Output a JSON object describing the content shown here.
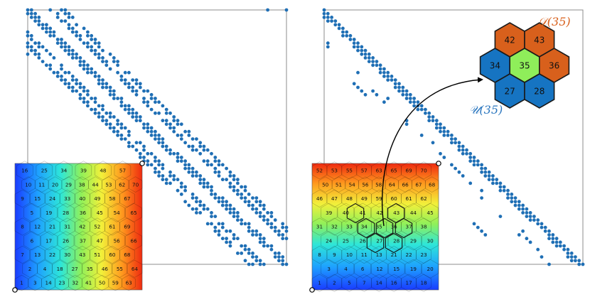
{
  "colors": {
    "dot": "#1f6fb5",
    "frame": "#8c8c8c",
    "hex_edge": "#1a1a1a",
    "downwind_fill": "#d8601c",
    "center_fill": "#8fee5a",
    "upwind_fill": "#1674c2",
    "label_D": "#d8601c",
    "label_U": "#2c77bf"
  },
  "left_mesh": {
    "cells": [
      {
        "label": "16"
      },
      {
        "label": "25"
      },
      {
        "label": "34"
      },
      {
        "label": "39"
      },
      {
        "label": "48"
      },
      {
        "label": "57"
      },
      {
        "label": "10"
      },
      {
        "label": "11"
      },
      {
        "label": "20"
      },
      {
        "label": "29"
      },
      {
        "label": "38"
      },
      {
        "label": "44"
      },
      {
        "label": "53"
      },
      {
        "label": "62"
      },
      {
        "label": "70"
      },
      {
        "label": "9"
      },
      {
        "label": "15"
      },
      {
        "label": "24"
      },
      {
        "label": "33"
      },
      {
        "label": "40"
      },
      {
        "label": "49"
      },
      {
        "label": "58"
      },
      {
        "label": "67"
      },
      {
        "label": "5"
      },
      {
        "label": "19"
      },
      {
        "label": "28"
      },
      {
        "label": "36"
      },
      {
        "label": "45"
      },
      {
        "label": "54"
      },
      {
        "label": "65"
      },
      {
        "label": "8"
      },
      {
        "label": "12"
      },
      {
        "label": "21"
      },
      {
        "label": "31"
      },
      {
        "label": "42"
      },
      {
        "label": "52"
      },
      {
        "label": "61"
      },
      {
        "label": "69"
      },
      {
        "label": "6"
      },
      {
        "label": "17"
      },
      {
        "label": "26"
      },
      {
        "label": "37"
      },
      {
        "label": "47"
      },
      {
        "label": "56"
      },
      {
        "label": "66"
      },
      {
        "label": "7"
      },
      {
        "label": "13"
      },
      {
        "label": "22"
      },
      {
        "label": "30"
      },
      {
        "label": "43"
      },
      {
        "label": "51"
      },
      {
        "label": "60"
      },
      {
        "label": "68"
      },
      {
        "label": "2"
      },
      {
        "label": "4"
      },
      {
        "label": "18"
      },
      {
        "label": "27"
      },
      {
        "label": "35"
      },
      {
        "label": "46"
      },
      {
        "label": "55"
      },
      {
        "label": "64"
      },
      {
        "label": "1"
      },
      {
        "label": "3"
      },
      {
        "label": "14"
      },
      {
        "label": "23"
      },
      {
        "label": "32"
      },
      {
        "label": "41"
      },
      {
        "label": "50"
      },
      {
        "label": "59"
      },
      {
        "label": "63"
      }
    ]
  },
  "right_mesh": {
    "cells": [
      {
        "label": "52"
      },
      {
        "label": "53"
      },
      {
        "label": "55"
      },
      {
        "label": "57"
      },
      {
        "label": "63"
      },
      {
        "label": "65"
      },
      {
        "label": "69"
      },
      {
        "label": "70"
      },
      {
        "label": "50"
      },
      {
        "label": "51"
      },
      {
        "label": "54"
      },
      {
        "label": "56"
      },
      {
        "label": "58"
      },
      {
        "label": "64"
      },
      {
        "label": "66"
      },
      {
        "label": "67"
      },
      {
        "label": "68"
      },
      {
        "label": "46"
      },
      {
        "label": "47"
      },
      {
        "label": "48"
      },
      {
        "label": "49"
      },
      {
        "label": "59"
      },
      {
        "label": "60"
      },
      {
        "label": "61"
      },
      {
        "label": "62"
      },
      {
        "label": "39"
      },
      {
        "label": "40"
      },
      {
        "label": "41"
      },
      {
        "label": "42"
      },
      {
        "label": "43"
      },
      {
        "label": "44"
      },
      {
        "label": "45"
      },
      {
        "label": "31"
      },
      {
        "label": "32"
      },
      {
        "label": "33"
      },
      {
        "label": "34"
      },
      {
        "label": "35"
      },
      {
        "label": "36"
      },
      {
        "label": "37"
      },
      {
        "label": "38"
      },
      {
        "label": "24"
      },
      {
        "label": "25"
      },
      {
        "label": "26"
      },
      {
        "label": "27"
      },
      {
        "label": "28"
      },
      {
        "label": "29"
      },
      {
        "label": "30"
      },
      {
        "label": "8"
      },
      {
        "label": "9"
      },
      {
        "label": "10"
      },
      {
        "label": "11"
      },
      {
        "label": "13"
      },
      {
        "label": "21"
      },
      {
        "label": "22"
      },
      {
        "label": "23"
      },
      {
        "label": "3"
      },
      {
        "label": "4"
      },
      {
        "label": "6"
      },
      {
        "label": "12"
      },
      {
        "label": "15"
      },
      {
        "label": "19"
      },
      {
        "label": "20"
      },
      {
        "label": "1"
      },
      {
        "label": "2"
      },
      {
        "label": "5"
      },
      {
        "label": "7"
      },
      {
        "label": "14"
      },
      {
        "label": "16"
      },
      {
        "label": "17"
      },
      {
        "label": "18"
      }
    ]
  },
  "stencil": {
    "downwind_label": "𝒟(35)",
    "upwind_label": "𝒰(35)",
    "hexes": [
      {
        "label": "42",
        "role": "downwind"
      },
      {
        "label": "43",
        "role": "downwind"
      },
      {
        "label": "34",
        "role": "upwind"
      },
      {
        "label": "35",
        "role": "center"
      },
      {
        "label": "36",
        "role": "downwind"
      },
      {
        "label": "27",
        "role": "upwind"
      },
      {
        "label": "28",
        "role": "upwind"
      }
    ]
  }
}
